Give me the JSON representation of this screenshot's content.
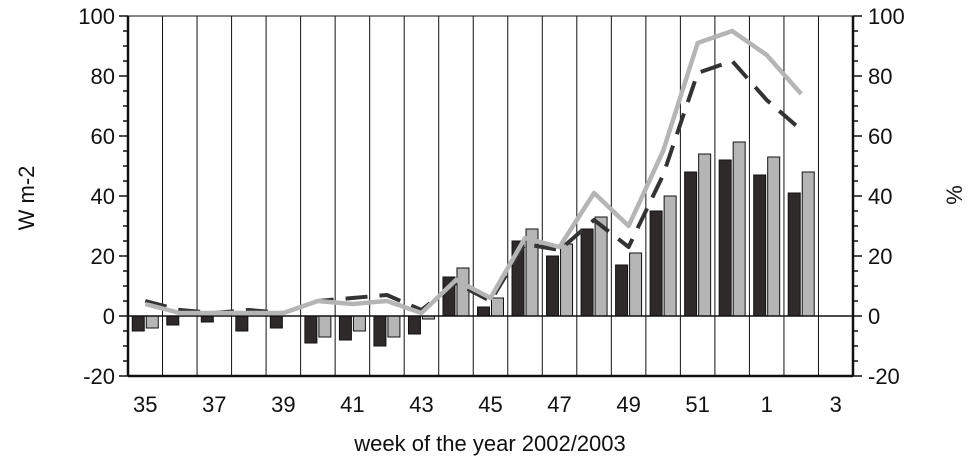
{
  "chart_data": {
    "type": "bar",
    "xlabel": "week of the year 2002/2003",
    "ylabel": "W m-2",
    "y2label": "%",
    "ylim": [
      -20,
      100
    ],
    "y2lim": [
      -20,
      100
    ],
    "x_ticks": [
      "35",
      "37",
      "39",
      "41",
      "43",
      "45",
      "47",
      "49",
      "51",
      "1",
      "3"
    ],
    "y_ticks": [
      "-20",
      "0",
      "20",
      "40",
      "60",
      "80",
      "100"
    ],
    "y2_ticks": [
      "-20",
      "0",
      "20",
      "40",
      "60",
      "80",
      "100"
    ],
    "categories": [
      "35",
      "36",
      "37",
      "38",
      "39",
      "40",
      "41",
      "42",
      "43",
      "44",
      "45",
      "46",
      "47",
      "48",
      "49",
      "50",
      "51",
      "52",
      "1",
      "2",
      "3"
    ],
    "series": [
      {
        "kind": "bar",
        "color": "#2e2a2a",
        "values": [
          -5,
          -3,
          -2,
          -5,
          -4,
          -9,
          -8,
          -10,
          -6,
          13,
          3,
          25,
          20,
          29,
          17,
          35,
          48,
          52,
          47,
          41,
          null
        ]
      },
      {
        "kind": "bar",
        "color": "#b5b5b5",
        "values": [
          -4,
          0,
          0,
          0,
          0,
          -7,
          -5,
          -7,
          -1,
          16,
          6,
          29,
          24,
          33,
          21,
          40,
          54,
          58,
          53,
          48,
          null
        ]
      },
      {
        "kind": "line",
        "style": "dashed",
        "color": "#333333",
        "values": [
          5,
          2,
          1,
          2,
          1,
          5,
          6,
          7,
          2,
          11,
          5,
          24,
          22,
          32,
          23,
          47,
          81,
          85,
          72,
          62,
          null
        ]
      },
      {
        "kind": "line",
        "style": "solid",
        "color": "#b5b5b5",
        "values": [
          4,
          1,
          1,
          1,
          1,
          5,
          4,
          5,
          1,
          12,
          6,
          26,
          23,
          41,
          30,
          55,
          91,
          95,
          87,
          74,
          null
        ]
      }
    ],
    "grid": "vertical"
  }
}
